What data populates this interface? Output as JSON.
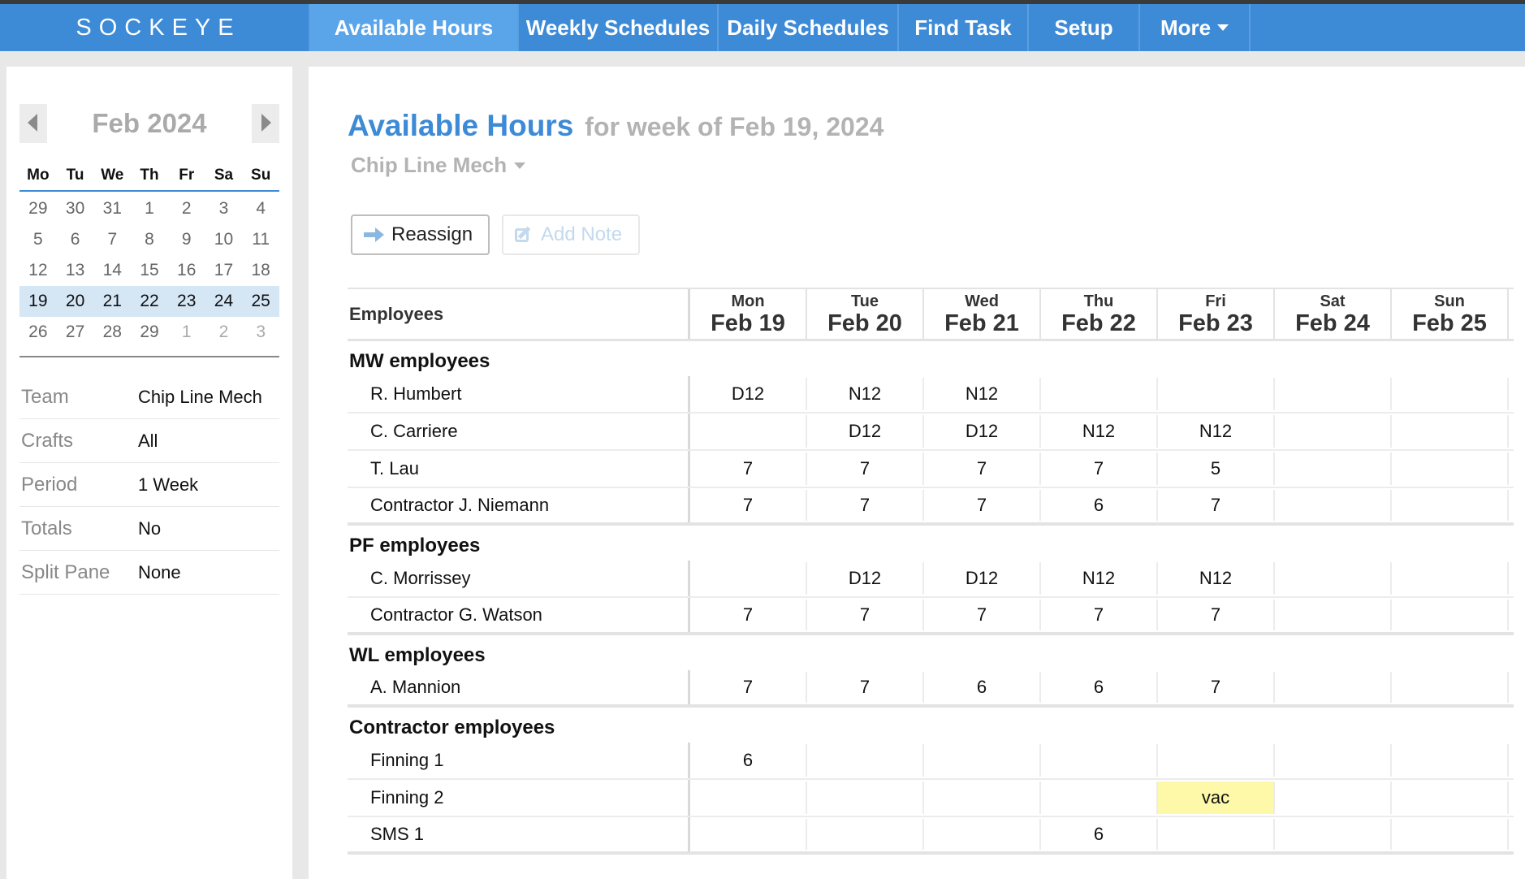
{
  "nav": {
    "logo": "SOCKEYE",
    "items": [
      {
        "label": "Available Hours",
        "active": true
      },
      {
        "label": "Weekly Schedules",
        "active": false
      },
      {
        "label": "Daily Schedules",
        "active": false
      },
      {
        "label": "Find Task",
        "active": false
      },
      {
        "label": "Setup",
        "active": false
      },
      {
        "label": "More",
        "active": false
      }
    ]
  },
  "calendar": {
    "title": "Feb 2024",
    "weekdays": [
      "Mo",
      "Tu",
      "We",
      "Th",
      "Fr",
      "Sa",
      "Su"
    ],
    "weeks": [
      [
        "29",
        "30",
        "31",
        "1",
        "2",
        "3",
        "4"
      ],
      [
        "5",
        "6",
        "7",
        "8",
        "9",
        "10",
        "11"
      ],
      [
        "12",
        "13",
        "14",
        "15",
        "16",
        "17",
        "18"
      ],
      [
        "19",
        "20",
        "21",
        "22",
        "23",
        "24",
        "25"
      ],
      [
        "26",
        "27",
        "28",
        "29",
        "1",
        "2",
        "3"
      ]
    ]
  },
  "settings": [
    {
      "label": "Team",
      "value": "Chip Line Mech"
    },
    {
      "label": "Crafts",
      "value": "All"
    },
    {
      "label": "Period",
      "value": "1 Week"
    },
    {
      "label": "Totals",
      "value": "No"
    },
    {
      "label": "Split Pane",
      "value": "None"
    }
  ],
  "page": {
    "title": "Available Hours",
    "subtitle": "for week of Feb 19, 2024",
    "team": "Chip Line Mech"
  },
  "toolbar": {
    "reassign_label": "Reassign",
    "add_note_label": "Add Note"
  },
  "table": {
    "employees_header": "Employees",
    "days": [
      {
        "dow": "Mon",
        "date": "Feb 19"
      },
      {
        "dow": "Tue",
        "date": "Feb 20"
      },
      {
        "dow": "Wed",
        "date": "Feb 21"
      },
      {
        "dow": "Thu",
        "date": "Feb 22"
      },
      {
        "dow": "Fri",
        "date": "Feb 23"
      },
      {
        "dow": "Sat",
        "date": "Feb 24"
      },
      {
        "dow": "Sun",
        "date": "Feb 25"
      }
    ],
    "groups": [
      {
        "title": "MW employees",
        "rows": [
          {
            "name": "R. Humbert",
            "cells": [
              "D12",
              "N12",
              "N12",
              "",
              "",
              "",
              ""
            ]
          },
          {
            "name": "C. Carriere",
            "cells": [
              "",
              "D12",
              "D12",
              "N12",
              "N12",
              "",
              ""
            ]
          },
          {
            "name": "T. Lau",
            "cells": [
              "7",
              "7",
              "7",
              "7",
              "5",
              "",
              ""
            ]
          },
          {
            "name": "Contractor J. Niemann",
            "cells": [
              "7",
              "7",
              "7",
              "6",
              "7",
              "",
              ""
            ]
          }
        ]
      },
      {
        "title": "PF employees",
        "rows": [
          {
            "name": "C. Morrissey",
            "cells": [
              "",
              "D12",
              "D12",
              "N12",
              "N12",
              "",
              ""
            ]
          },
          {
            "name": "Contractor G. Watson",
            "cells": [
              "7",
              "7",
              "7",
              "7",
              "7",
              "",
              ""
            ]
          }
        ]
      },
      {
        "title": "WL employees",
        "rows": [
          {
            "name": "A. Mannion",
            "cells": [
              "7",
              "7",
              "6",
              "6",
              "7",
              "",
              ""
            ]
          }
        ]
      },
      {
        "title": "Contractor employees",
        "rows": [
          {
            "name": "Finning 1",
            "cells": [
              "6",
              "",
              "",
              "",
              "",
              "",
              ""
            ]
          },
          {
            "name": "Finning 2",
            "cells": [
              "",
              "",
              "",
              "",
              "vac",
              "",
              ""
            ]
          },
          {
            "name": "SMS 1",
            "cells": [
              "",
              "",
              "",
              "6",
              "",
              "",
              ""
            ]
          }
        ]
      }
    ]
  }
}
